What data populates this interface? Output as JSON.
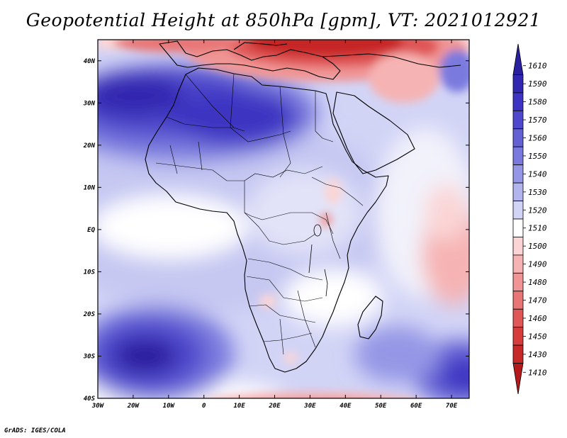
{
  "title": "Geopotential Height at 850hPa [gpm], VT: 2021012921",
  "credit": "GrADS: IGES/COLA",
  "map": {
    "lon_range": [
      -30,
      75
    ],
    "lat_range": [
      -40,
      45
    ],
    "lat_labels": [
      "40N",
      "30N",
      "20N",
      "10N",
      "EQ",
      "10S",
      "20S",
      "30S",
      "40S"
    ],
    "lat_values": [
      40,
      30,
      20,
      10,
      0,
      -10,
      -20,
      -30,
      -40
    ],
    "lon_labels": [
      "30W",
      "20W",
      "10W",
      "0",
      "10E",
      "20E",
      "30E",
      "40E",
      "50E",
      "60E",
      "70E"
    ],
    "lon_values": [
      -30,
      -20,
      -10,
      0,
      10,
      20,
      30,
      40,
      50,
      60,
      70
    ]
  },
  "colorbar": {
    "levels": [
      "1610",
      "1590",
      "1580",
      "1570",
      "1560",
      "1550",
      "1540",
      "1530",
      "1520",
      "1510",
      "1500",
      "1490",
      "1480",
      "1470",
      "1460",
      "1450",
      "1430",
      "1410"
    ],
    "colors": [
      "#2a1f9e",
      "#3127b0",
      "#3d35c2",
      "#4f48cc",
      "#6461d4",
      "#7a7ade",
      "#9597e6",
      "#b2b4ee",
      "#d2d4f6",
      "#ffffff",
      "#fbd5d5",
      "#f6b3b3",
      "#f09595",
      "#e87676",
      "#df5757",
      "#d63c3c",
      "#c72828",
      "#b51a1a"
    ]
  }
}
